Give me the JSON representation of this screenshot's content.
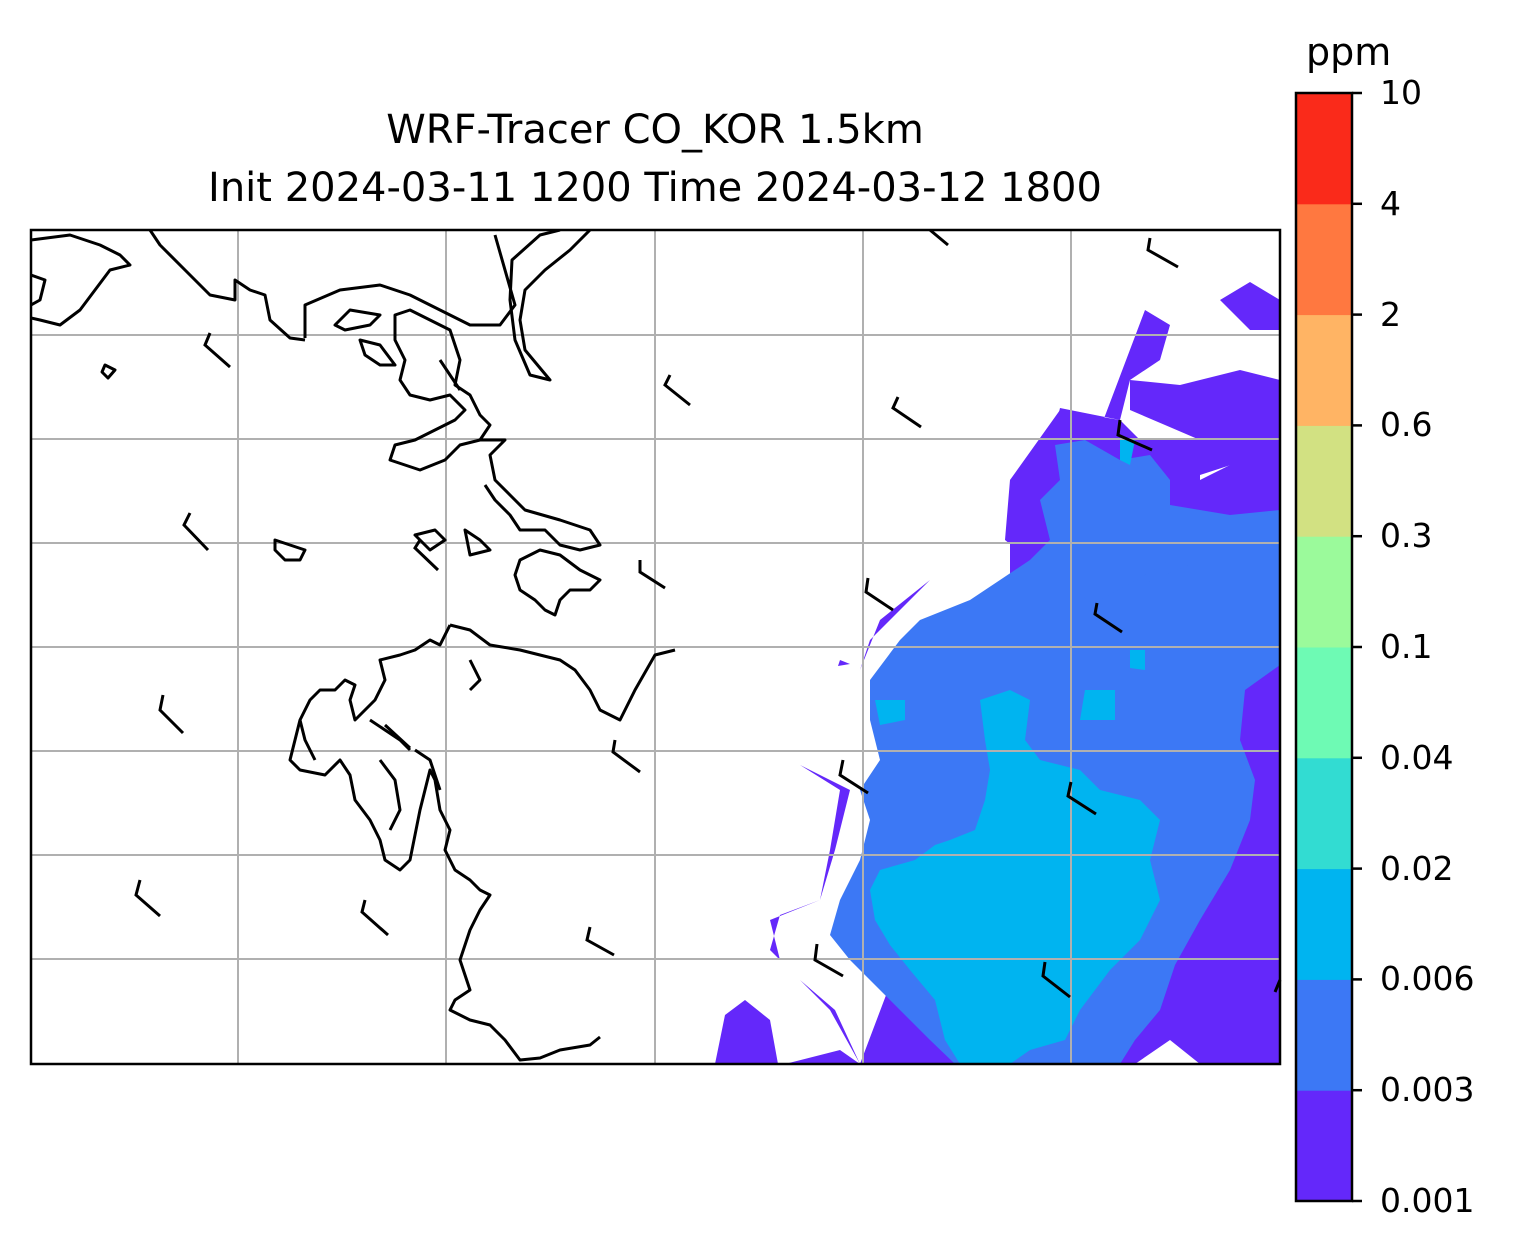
{
  "map": {
    "title_line1": "WRF-Tracer CO_KOR 1.5km",
    "title_line2": "Init 2024-03-11 1200 Time 2024-03-12 1800",
    "grid": true,
    "coastline_color": "#000000",
    "grid_color": "#b0b0b0",
    "wind_barb_color": "#000000",
    "colorbar": {
      "unit": "ppm",
      "levels": [
        "0.001",
        "0.003",
        "0.006",
        "0.02",
        "0.04",
        "0.1",
        "0.3",
        "0.6",
        "2",
        "4",
        "10"
      ],
      "colors": [
        "#6428fa",
        "#3c78f5",
        "#00b4f0",
        "#32dcd2",
        "#6efab4",
        "#9bfa9b",
        "#d2e182",
        "#ffb464",
        "#ff7840",
        "#fa2a1a"
      ]
    }
  }
}
